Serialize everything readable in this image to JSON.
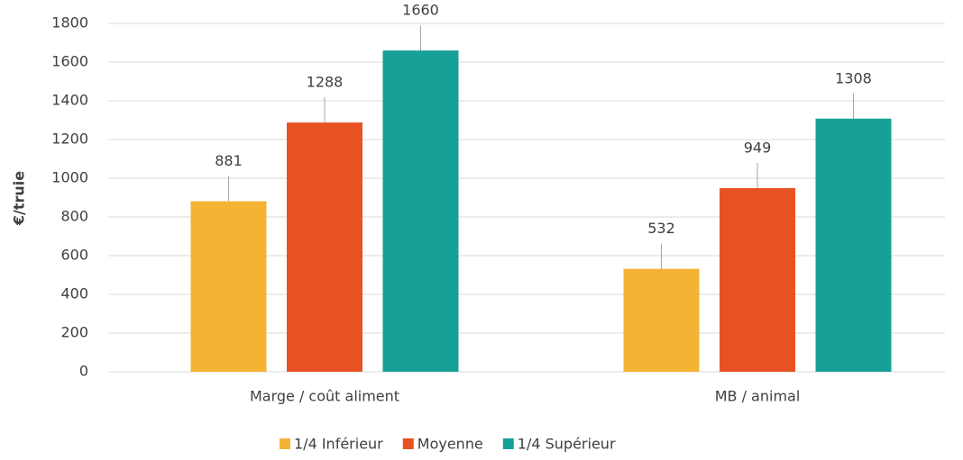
{
  "chart_data": {
    "type": "bar",
    "y_label": "€/truie",
    "categories": [
      "Marge / coût aliment",
      "MB / animal"
    ],
    "series": [
      {
        "name": "1/4 Inférieur",
        "color": "#f5b335",
        "values": [
          881,
          532
        ]
      },
      {
        "name": "Moyenne",
        "color": "#e85222",
        "values": [
          1288,
          949
        ]
      },
      {
        "name": "1/4 Supérieur",
        "color": "#17a097",
        "values": [
          1660,
          1308
        ]
      }
    ],
    "ylim": [
      0,
      1800
    ],
    "yticks": [
      0,
      200,
      400,
      600,
      800,
      1000,
      1200,
      1400,
      1600,
      1800
    ],
    "grid": true,
    "legend": "bottom"
  }
}
